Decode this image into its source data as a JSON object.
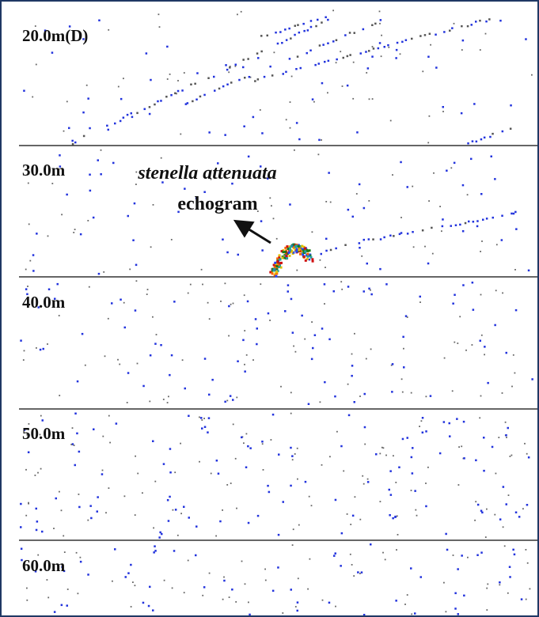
{
  "depth_labels": [
    "20.0m(D)",
    "30.0m",
    "40.0m",
    "50.0m",
    "60.0m"
  ],
  "annotation": {
    "species": "stenella attenuata",
    "label": "echogram"
  }
}
